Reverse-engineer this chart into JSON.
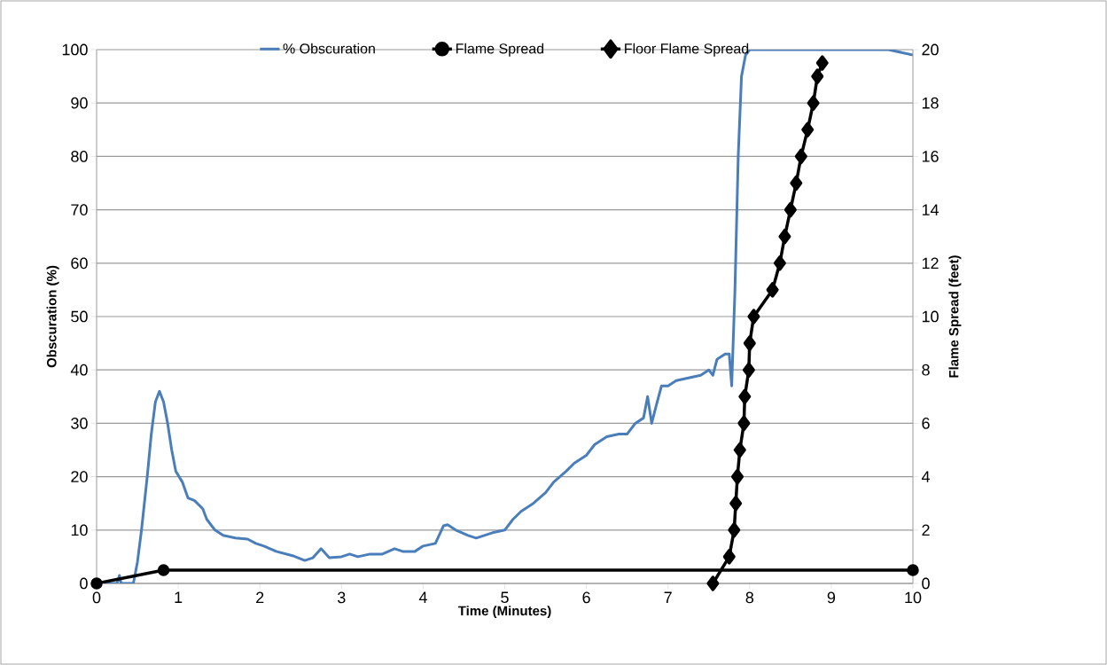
{
  "chart_data": {
    "type": "line",
    "xlabel": "Time (Minutes)",
    "ylabel": "Obscuration (%)",
    "y2label": "Flame Spread (feet)",
    "xlim": [
      0,
      10
    ],
    "xticks": [
      0,
      1,
      2,
      3,
      4,
      5,
      6,
      7,
      8,
      9,
      10
    ],
    "ylim": [
      0,
      100
    ],
    "yticks": [
      0,
      10,
      20,
      30,
      40,
      50,
      60,
      70,
      80,
      90,
      100
    ],
    "y2lim": [
      0,
      20
    ],
    "y2ticks": [
      0,
      2,
      4,
      6,
      8,
      10,
      12,
      14,
      16,
      18,
      20
    ],
    "grid": "y",
    "legend": "top",
    "series": [
      {
        "name": "% Obscuration",
        "color": "#4a7ebb",
        "marker": "none",
        "x": [
          0,
          0.25,
          0.28,
          0.3,
          0.45,
          0.5,
          0.55,
          0.62,
          0.67,
          0.72,
          0.77,
          0.82,
          0.87,
          0.92,
          0.97,
          1.05,
          1.12,
          1.2,
          1.3,
          1.35,
          1.45,
          1.55,
          1.7,
          1.85,
          1.95,
          2.05,
          2.2,
          2.4,
          2.55,
          2.65,
          2.75,
          2.85,
          3.0,
          3.1,
          3.2,
          3.35,
          3.5,
          3.65,
          3.75,
          3.9,
          4.0,
          4.15,
          4.25,
          4.3,
          4.4,
          4.55,
          4.65,
          4.75,
          4.85,
          5.0,
          5.1,
          5.2,
          5.35,
          5.5,
          5.6,
          5.75,
          5.85,
          6.0,
          6.1,
          6.25,
          6.4,
          6.5,
          6.6,
          6.7,
          6.75,
          6.8,
          6.85,
          6.92,
          7.0,
          7.1,
          7.25,
          7.4,
          7.5,
          7.55,
          7.6,
          7.7,
          7.75,
          7.78,
          7.82,
          7.86,
          7.9,
          7.95,
          8.0,
          9.0,
          9.7,
          10
        ],
        "values": [
          0,
          0,
          1.5,
          0,
          0,
          4,
          10,
          20,
          28,
          34,
          36,
          34,
          30,
          25,
          21,
          19,
          16,
          15.5,
          14,
          12,
          10,
          9,
          8.5,
          8.3,
          7.5,
          7,
          6,
          5.2,
          4.3,
          4.8,
          6.5,
          4.8,
          5,
          5.5,
          5,
          5.5,
          5.5,
          6.5,
          6,
          6,
          7,
          7.5,
          10.8,
          11,
          10,
          9,
          8.5,
          9,
          9.5,
          10,
          12,
          13.5,
          15,
          17,
          19,
          21,
          22.5,
          24,
          26,
          27.5,
          28,
          28,
          30,
          31,
          35,
          30,
          33,
          37,
          37,
          38,
          38.5,
          39,
          40,
          39,
          42,
          43,
          43,
          37,
          55,
          80,
          95,
          99,
          100,
          100,
          100,
          99
        ]
      },
      {
        "name": "Flame Spread",
        "color": "#000000",
        "marker": "circle",
        "axis": "y2",
        "x": [
          0,
          0.82,
          10
        ],
        "values": [
          0,
          0.5,
          0.5
        ]
      },
      {
        "name": "Floor Flame Spread",
        "color": "#000000",
        "marker": "diamond",
        "axis": "y2",
        "x": [
          7.55,
          7.75,
          7.81,
          7.83,
          7.85,
          7.88,
          7.93,
          7.94,
          7.99,
          8.0,
          8.05,
          8.28,
          8.37,
          8.43,
          8.5,
          8.57,
          8.63,
          8.71,
          8.78,
          8.83,
          8.89
        ],
        "values": [
          0,
          1,
          2,
          3,
          4,
          5,
          6,
          7,
          8,
          9,
          10,
          11,
          12,
          13,
          14,
          15,
          16,
          17,
          18,
          19,
          19.5
        ]
      }
    ]
  }
}
